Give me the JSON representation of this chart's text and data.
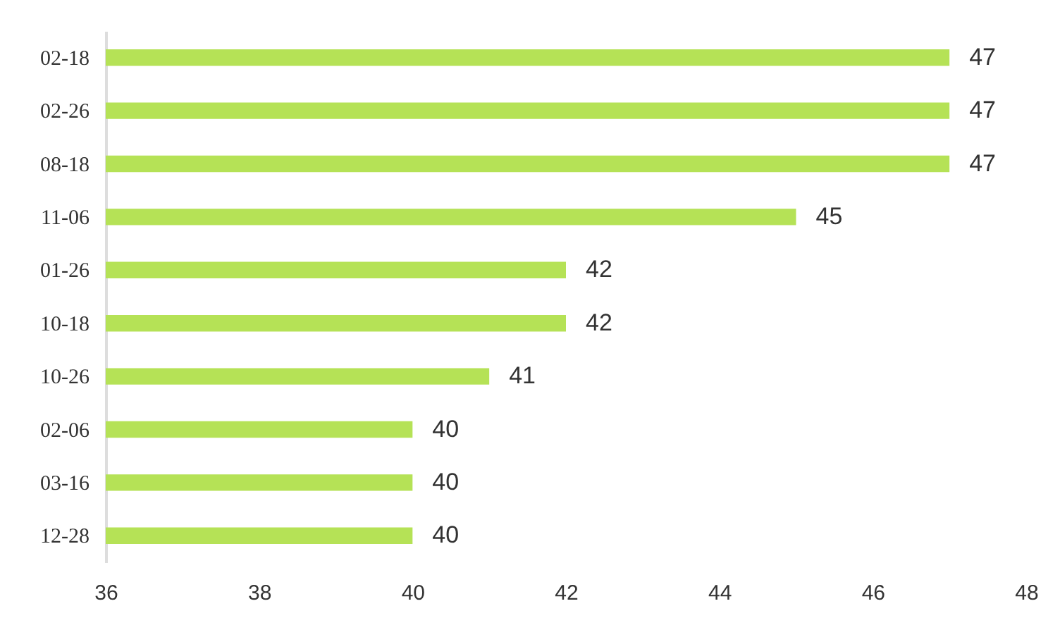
{
  "chart_data": {
    "type": "bar",
    "orientation": "horizontal",
    "categories": [
      "02-18",
      "02-26",
      "08-18",
      "11-06",
      "01-26",
      "10-18",
      "10-26",
      "02-06",
      "03-16",
      "12-28"
    ],
    "values": [
      47,
      47,
      47,
      45,
      42,
      42,
      41,
      40,
      40,
      40
    ],
    "color": "#b5e256",
    "xlim": [
      36,
      48
    ],
    "xticks": [
      36,
      38,
      40,
      42,
      44,
      46,
      48
    ],
    "data_labels": true
  }
}
